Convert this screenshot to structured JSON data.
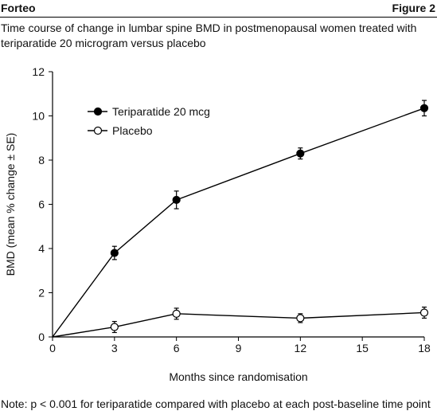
{
  "header": {
    "drug_name": "Forteo",
    "figure_label": "Figure 2"
  },
  "title": "Time course of change in lumbar spine BMD in postmenopausal women treated with teriparatide 20 microgram versus placebo",
  "footnote": "Note: p < 0.001 for teriparatide compared with placebo at each post-baseline time point",
  "chart_data": {
    "type": "line",
    "title": "",
    "xlabel": "Months since randomisation",
    "ylabel": "BMD (mean % change ± SE)",
    "xlim": [
      0,
      18
    ],
    "ylim": [
      0,
      12
    ],
    "xticks": [
      0,
      3,
      6,
      9,
      12,
      15,
      18
    ],
    "yticks": [
      0,
      2,
      4,
      6,
      8,
      10,
      12
    ],
    "grid": false,
    "legend_position": "top-left",
    "series": [
      {
        "name": "Teriparatide 20 mcg",
        "marker": "filled-circle",
        "x": [
          0,
          3,
          6,
          12,
          18
        ],
        "y": [
          0,
          3.8,
          6.2,
          8.3,
          10.35
        ],
        "se": [
          0,
          0.3,
          0.4,
          0.25,
          0.35
        ]
      },
      {
        "name": "Placebo",
        "marker": "open-circle",
        "x": [
          0,
          3,
          6,
          12,
          18
        ],
        "y": [
          0,
          0.45,
          1.05,
          0.85,
          1.1
        ],
        "se": [
          0,
          0.25,
          0.25,
          0.2,
          0.25
        ]
      }
    ]
  }
}
